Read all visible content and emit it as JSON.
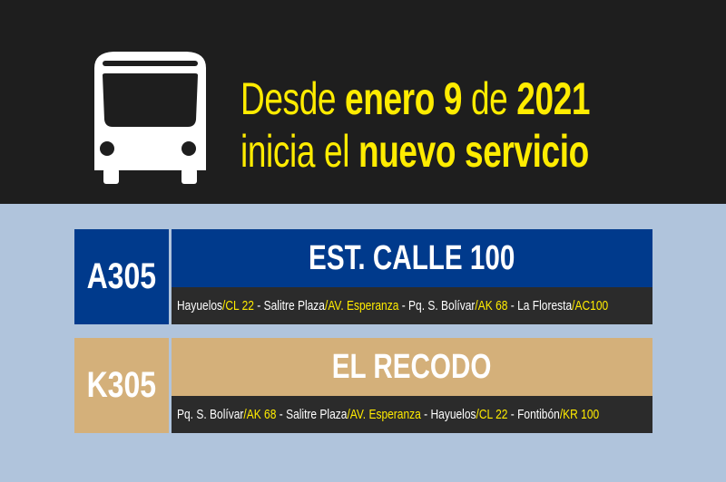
{
  "colors": {
    "header_bg": "#1e1e1e",
    "background": "#b0c4dc",
    "accent_yellow": "#ffec00",
    "route1": "#003a8c",
    "route2": "#d4b07a",
    "via_bar": "#2b2b2b"
  },
  "header": {
    "icon": "bus-icon",
    "line1": [
      {
        "t": "Desde ",
        "bold": false
      },
      {
        "t": "enero 9",
        "bold": true
      },
      {
        "t": " de ",
        "bold": false
      },
      {
        "t": "2021",
        "bold": true
      }
    ],
    "line2": [
      {
        "t": "inicia el ",
        "bold": false
      },
      {
        "t": "nuevo servicio",
        "bold": true
      }
    ]
  },
  "routes": [
    {
      "code": "A305",
      "destination": "EST. CALLE 100",
      "stops": [
        {
          "t": "Hayuelos",
          "h": false
        },
        {
          "t": "/CL 22",
          "h": true
        },
        {
          "t": " - Salitre Plaza",
          "h": false
        },
        {
          "t": "/AV. Esperanza",
          "h": true
        },
        {
          "t": " - Pq. S. Bolívar",
          "h": false
        },
        {
          "t": "/AK 68",
          "h": true
        },
        {
          "t": " - La Floresta",
          "h": false
        },
        {
          "t": "/AC100",
          "h": true
        }
      ]
    },
    {
      "code": "K305",
      "destination": "EL RECODO",
      "stops": [
        {
          "t": "Pq. S. Bolívar",
          "h": false
        },
        {
          "t": "/AK 68",
          "h": true
        },
        {
          "t": " - Salitre Plaza",
          "h": false
        },
        {
          "t": "/AV. Esperanza",
          "h": true
        },
        {
          "t": " - Hayuelos",
          "h": false
        },
        {
          "t": "/CL 22",
          "h": true
        },
        {
          "t": " - Fontibón",
          "h": false
        },
        {
          "t": "/KR 100",
          "h": true
        }
      ]
    }
  ]
}
